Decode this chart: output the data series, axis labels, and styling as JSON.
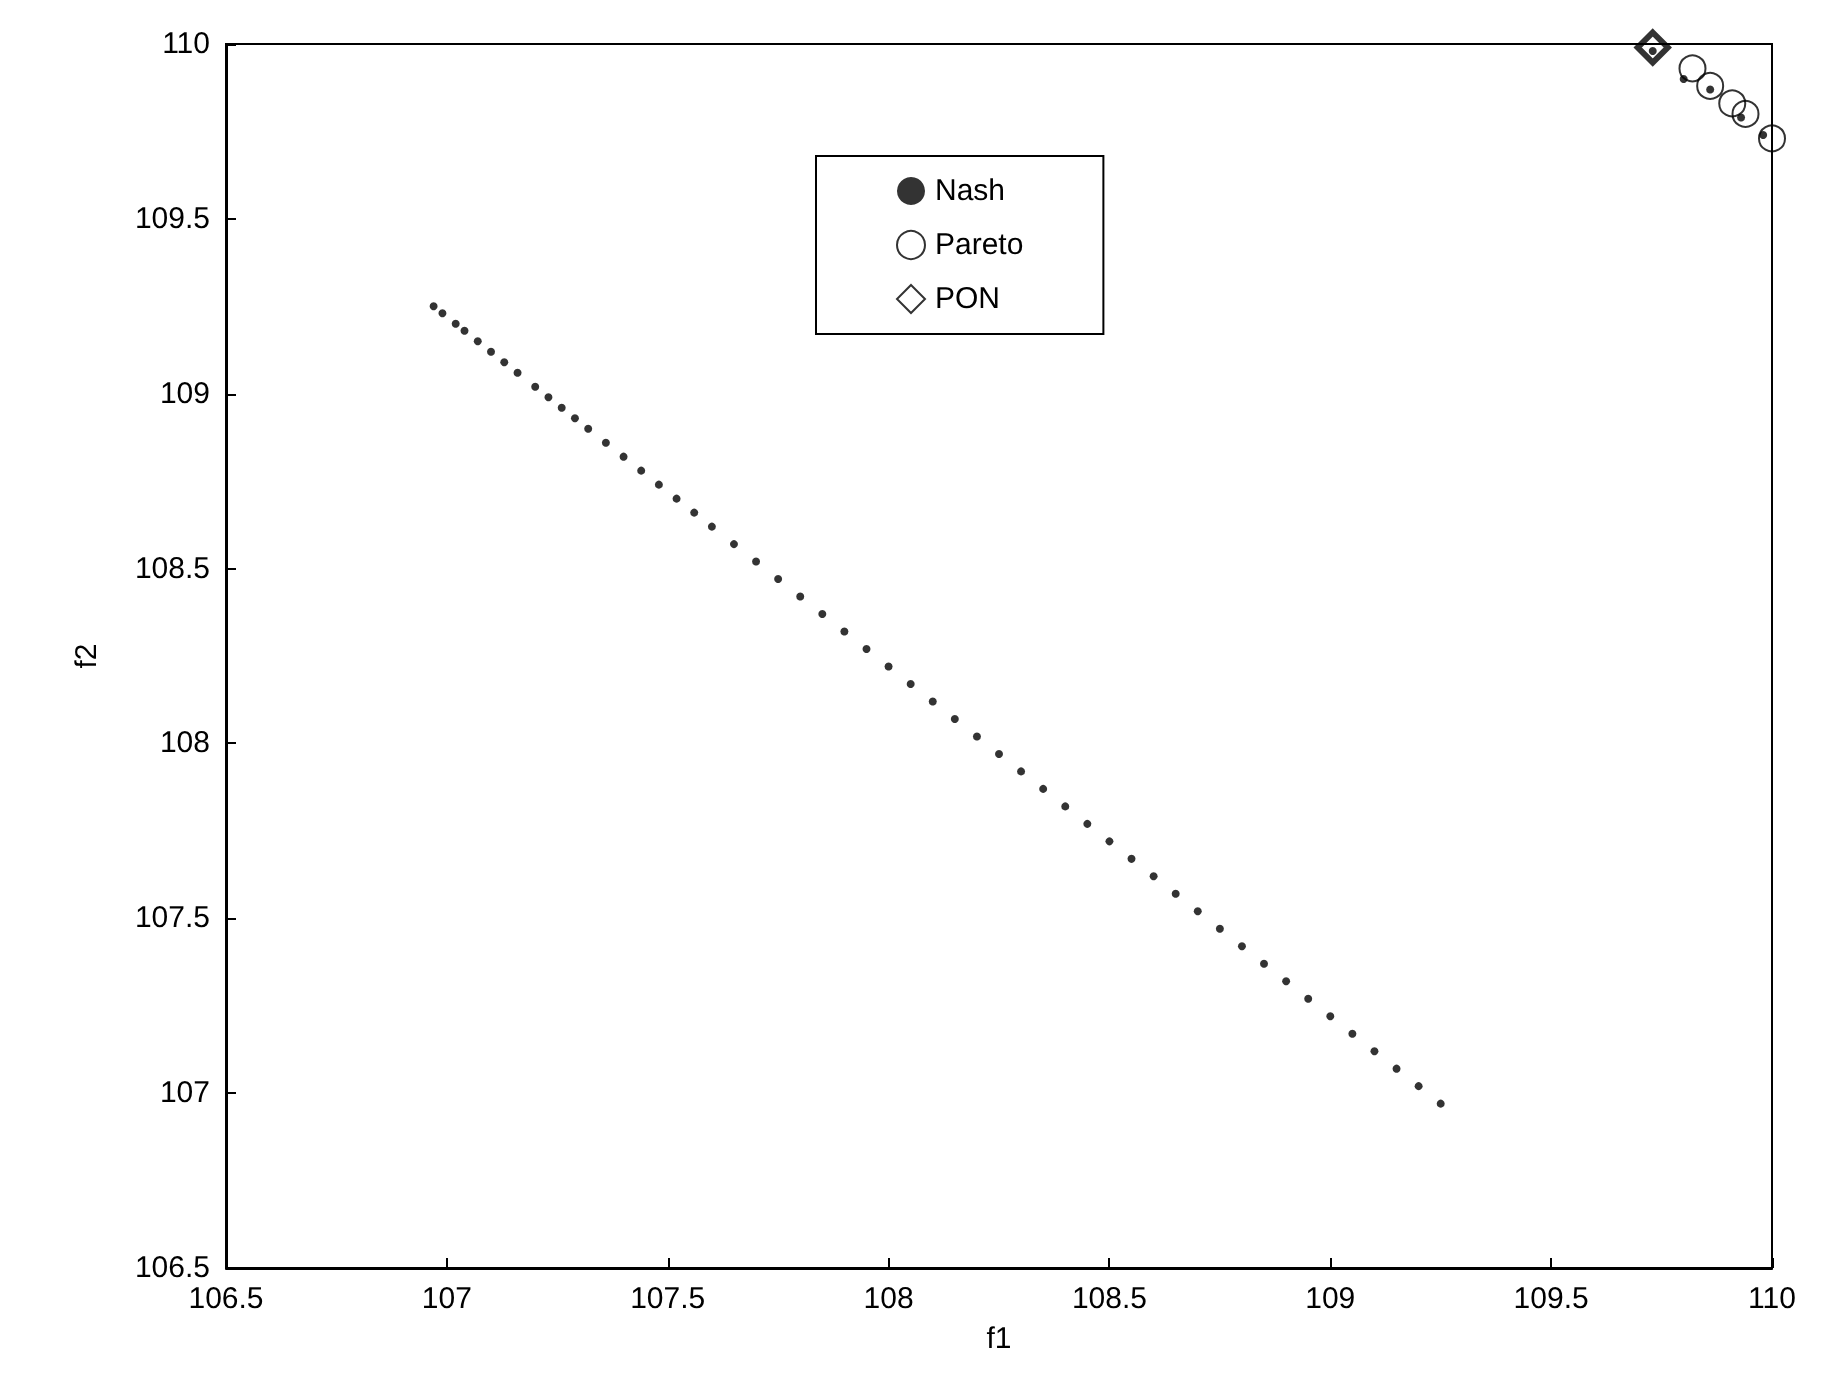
{
  "chart_data": {
    "type": "scatter",
    "xlabel": "f1",
    "ylabel": "f2",
    "xlim": [
      106.5,
      110
    ],
    "xticks": [
      106.5,
      107,
      107.5,
      108,
      108.5,
      109,
      109.5,
      110
    ],
    "ylim": [
      106.5,
      110
    ],
    "yticks": [
      106.5,
      107,
      107.5,
      108,
      108.5,
      109,
      109.5,
      110
    ],
    "grid": false,
    "legend": "top",
    "series": [
      {
        "name": "Nash",
        "color": "#000000",
        "marker": "circle",
        "x": [
          106.97,
          106.99,
          107.02,
          107.04,
          107.07,
          107.1,
          107.13,
          107.16,
          107.2,
          107.23,
          107.26,
          107.29,
          107.32,
          107.36,
          107.4,
          107.44,
          107.48,
          107.52,
          107.56,
          107.6,
          107.65,
          107.7,
          107.75,
          107.8,
          107.85,
          107.9,
          107.95,
          108.0,
          108.05,
          108.1,
          108.15,
          108.2,
          108.25,
          108.3,
          108.35,
          108.4,
          108.45,
          108.5,
          108.55,
          108.6,
          108.65,
          108.7,
          108.75,
          108.8,
          108.85,
          108.9,
          108.95,
          109.0,
          109.05,
          109.1,
          109.15,
          109.2,
          109.25,
          109.73,
          109.8,
          109.86,
          109.93,
          109.98
        ],
        "values": [
          109.25,
          109.23,
          109.2,
          109.18,
          109.15,
          109.12,
          109.09,
          109.06,
          109.02,
          108.99,
          108.96,
          108.93,
          108.9,
          108.86,
          108.82,
          108.78,
          108.74,
          108.7,
          108.66,
          108.62,
          108.57,
          108.52,
          108.47,
          108.42,
          108.37,
          108.32,
          108.27,
          108.22,
          108.17,
          108.12,
          108.07,
          108.02,
          107.97,
          107.92,
          107.87,
          107.82,
          107.77,
          107.72,
          107.67,
          107.62,
          107.57,
          107.52,
          107.47,
          107.42,
          107.37,
          107.32,
          107.27,
          107.22,
          107.17,
          107.12,
          107.07,
          107.02,
          106.97,
          109.98,
          109.9,
          109.87,
          109.79,
          109.74
        ]
      },
      {
        "name": "Pareto",
        "color": "#000000",
        "marker": "circle",
        "x": [
          109.82,
          109.86,
          109.91,
          109.94,
          110.0
        ],
        "values": [
          109.93,
          109.88,
          109.83,
          109.8,
          109.73
        ]
      },
      {
        "name": "PON",
        "color": "#000000",
        "marker": "diamond",
        "x": [
          109.73
        ],
        "values": [
          109.99
        ]
      }
    ]
  }
}
